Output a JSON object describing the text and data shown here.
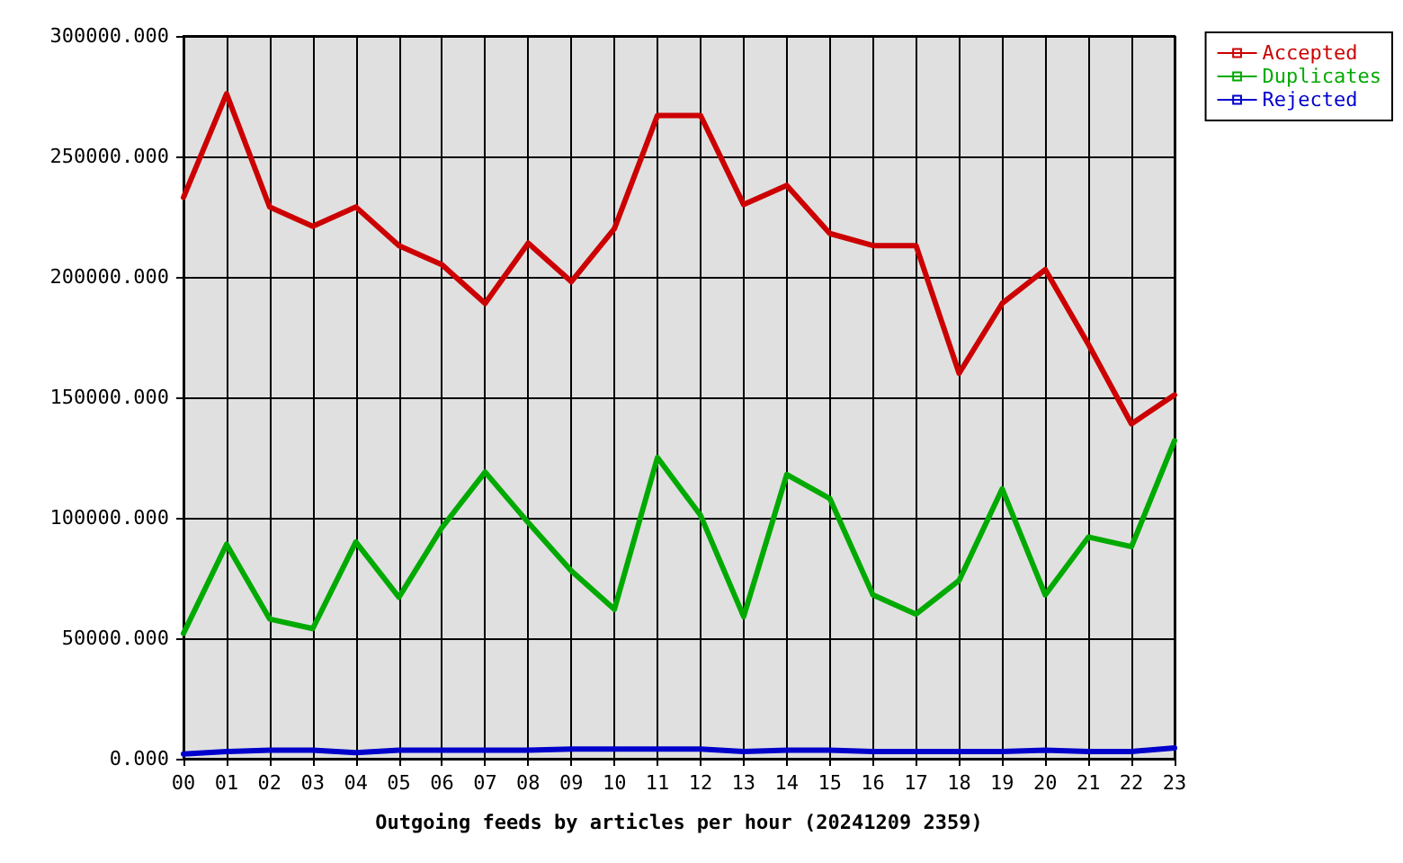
{
  "chart_data": {
    "type": "line",
    "xlabel": "Outgoing feeds by articles per hour (20241209 2359)",
    "categories": [
      "00",
      "01",
      "02",
      "03",
      "04",
      "05",
      "06",
      "07",
      "08",
      "09",
      "10",
      "11",
      "12",
      "13",
      "14",
      "15",
      "16",
      "17",
      "18",
      "19",
      "20",
      "21",
      "22",
      "23"
    ],
    "series": [
      {
        "name": "Accepted",
        "color": "#cc0000",
        "values": [
          233000,
          276000,
          229000,
          221000,
          229000,
          213000,
          205000,
          189000,
          214000,
          198000,
          220000,
          267000,
          267000,
          230000,
          238000,
          218000,
          213000,
          213000,
          160000,
          189000,
          203000,
          172000,
          139000,
          151000
        ]
      },
      {
        "name": "Duplicates",
        "color": "#00aa00",
        "values": [
          52000,
          89000,
          58000,
          54000,
          90000,
          67000,
          96000,
          119000,
          98000,
          78000,
          62000,
          125000,
          101000,
          59000,
          118000,
          108000,
          68000,
          60000,
          74000,
          112000,
          68000,
          92000,
          88000,
          132000
        ]
      },
      {
        "name": "Rejected",
        "color": "#0000cc",
        "values": [
          2000,
          3000,
          3500,
          3500,
          2500,
          3500,
          3500,
          3500,
          3500,
          4000,
          4000,
          4000,
          4000,
          3000,
          3500,
          3500,
          3000,
          3000,
          3000,
          3000,
          3500,
          3000,
          3000,
          4500
        ]
      }
    ],
    "ylim": [
      0,
      300000
    ],
    "yticks": [
      {
        "value": 0,
        "label": "0.000"
      },
      {
        "value": 50000,
        "label": "50000.000"
      },
      {
        "value": 100000,
        "label": "100000.000"
      },
      {
        "value": 150000,
        "label": "150000.000"
      },
      {
        "value": 200000,
        "label": "200000.000"
      },
      {
        "value": 250000,
        "label": "250000.000"
      },
      {
        "value": 300000,
        "label": "300000.000"
      }
    ],
    "grid": true,
    "legend": "top right",
    "marker": "none",
    "line_style": "solid"
  }
}
